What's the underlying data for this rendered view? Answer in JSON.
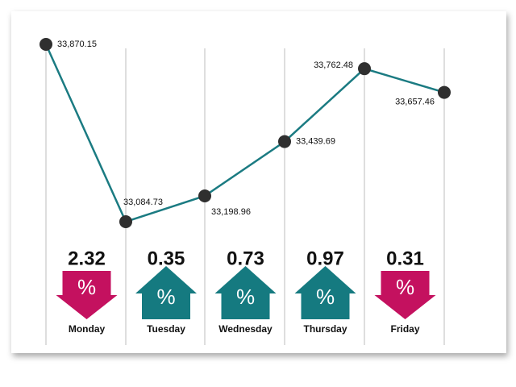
{
  "chart_data": {
    "type": "line",
    "values": [
      33870.15,
      33084.73,
      33198.96,
      33439.69,
      33762.48,
      33657.46
    ],
    "value_labels": [
      "33,870.15",
      "33,084.73",
      "33,198.96",
      "33,439.69",
      "33,762.48",
      "33,657.46"
    ],
    "color": "#1b7b82",
    "marker_color": "#2f2f2f",
    "changes": {
      "categories": [
        "Monday",
        "Tuesday",
        "Wednesday",
        "Thursday",
        "Friday"
      ],
      "values": [
        -2.32,
        0.35,
        0.73,
        0.97,
        -0.31
      ],
      "value_labels": [
        "2.32",
        "0.35",
        "0.73",
        "0.97",
        "0.31"
      ],
      "symbol": "%",
      "up_color": "#157a80",
      "down_color": "#c4115f"
    }
  }
}
